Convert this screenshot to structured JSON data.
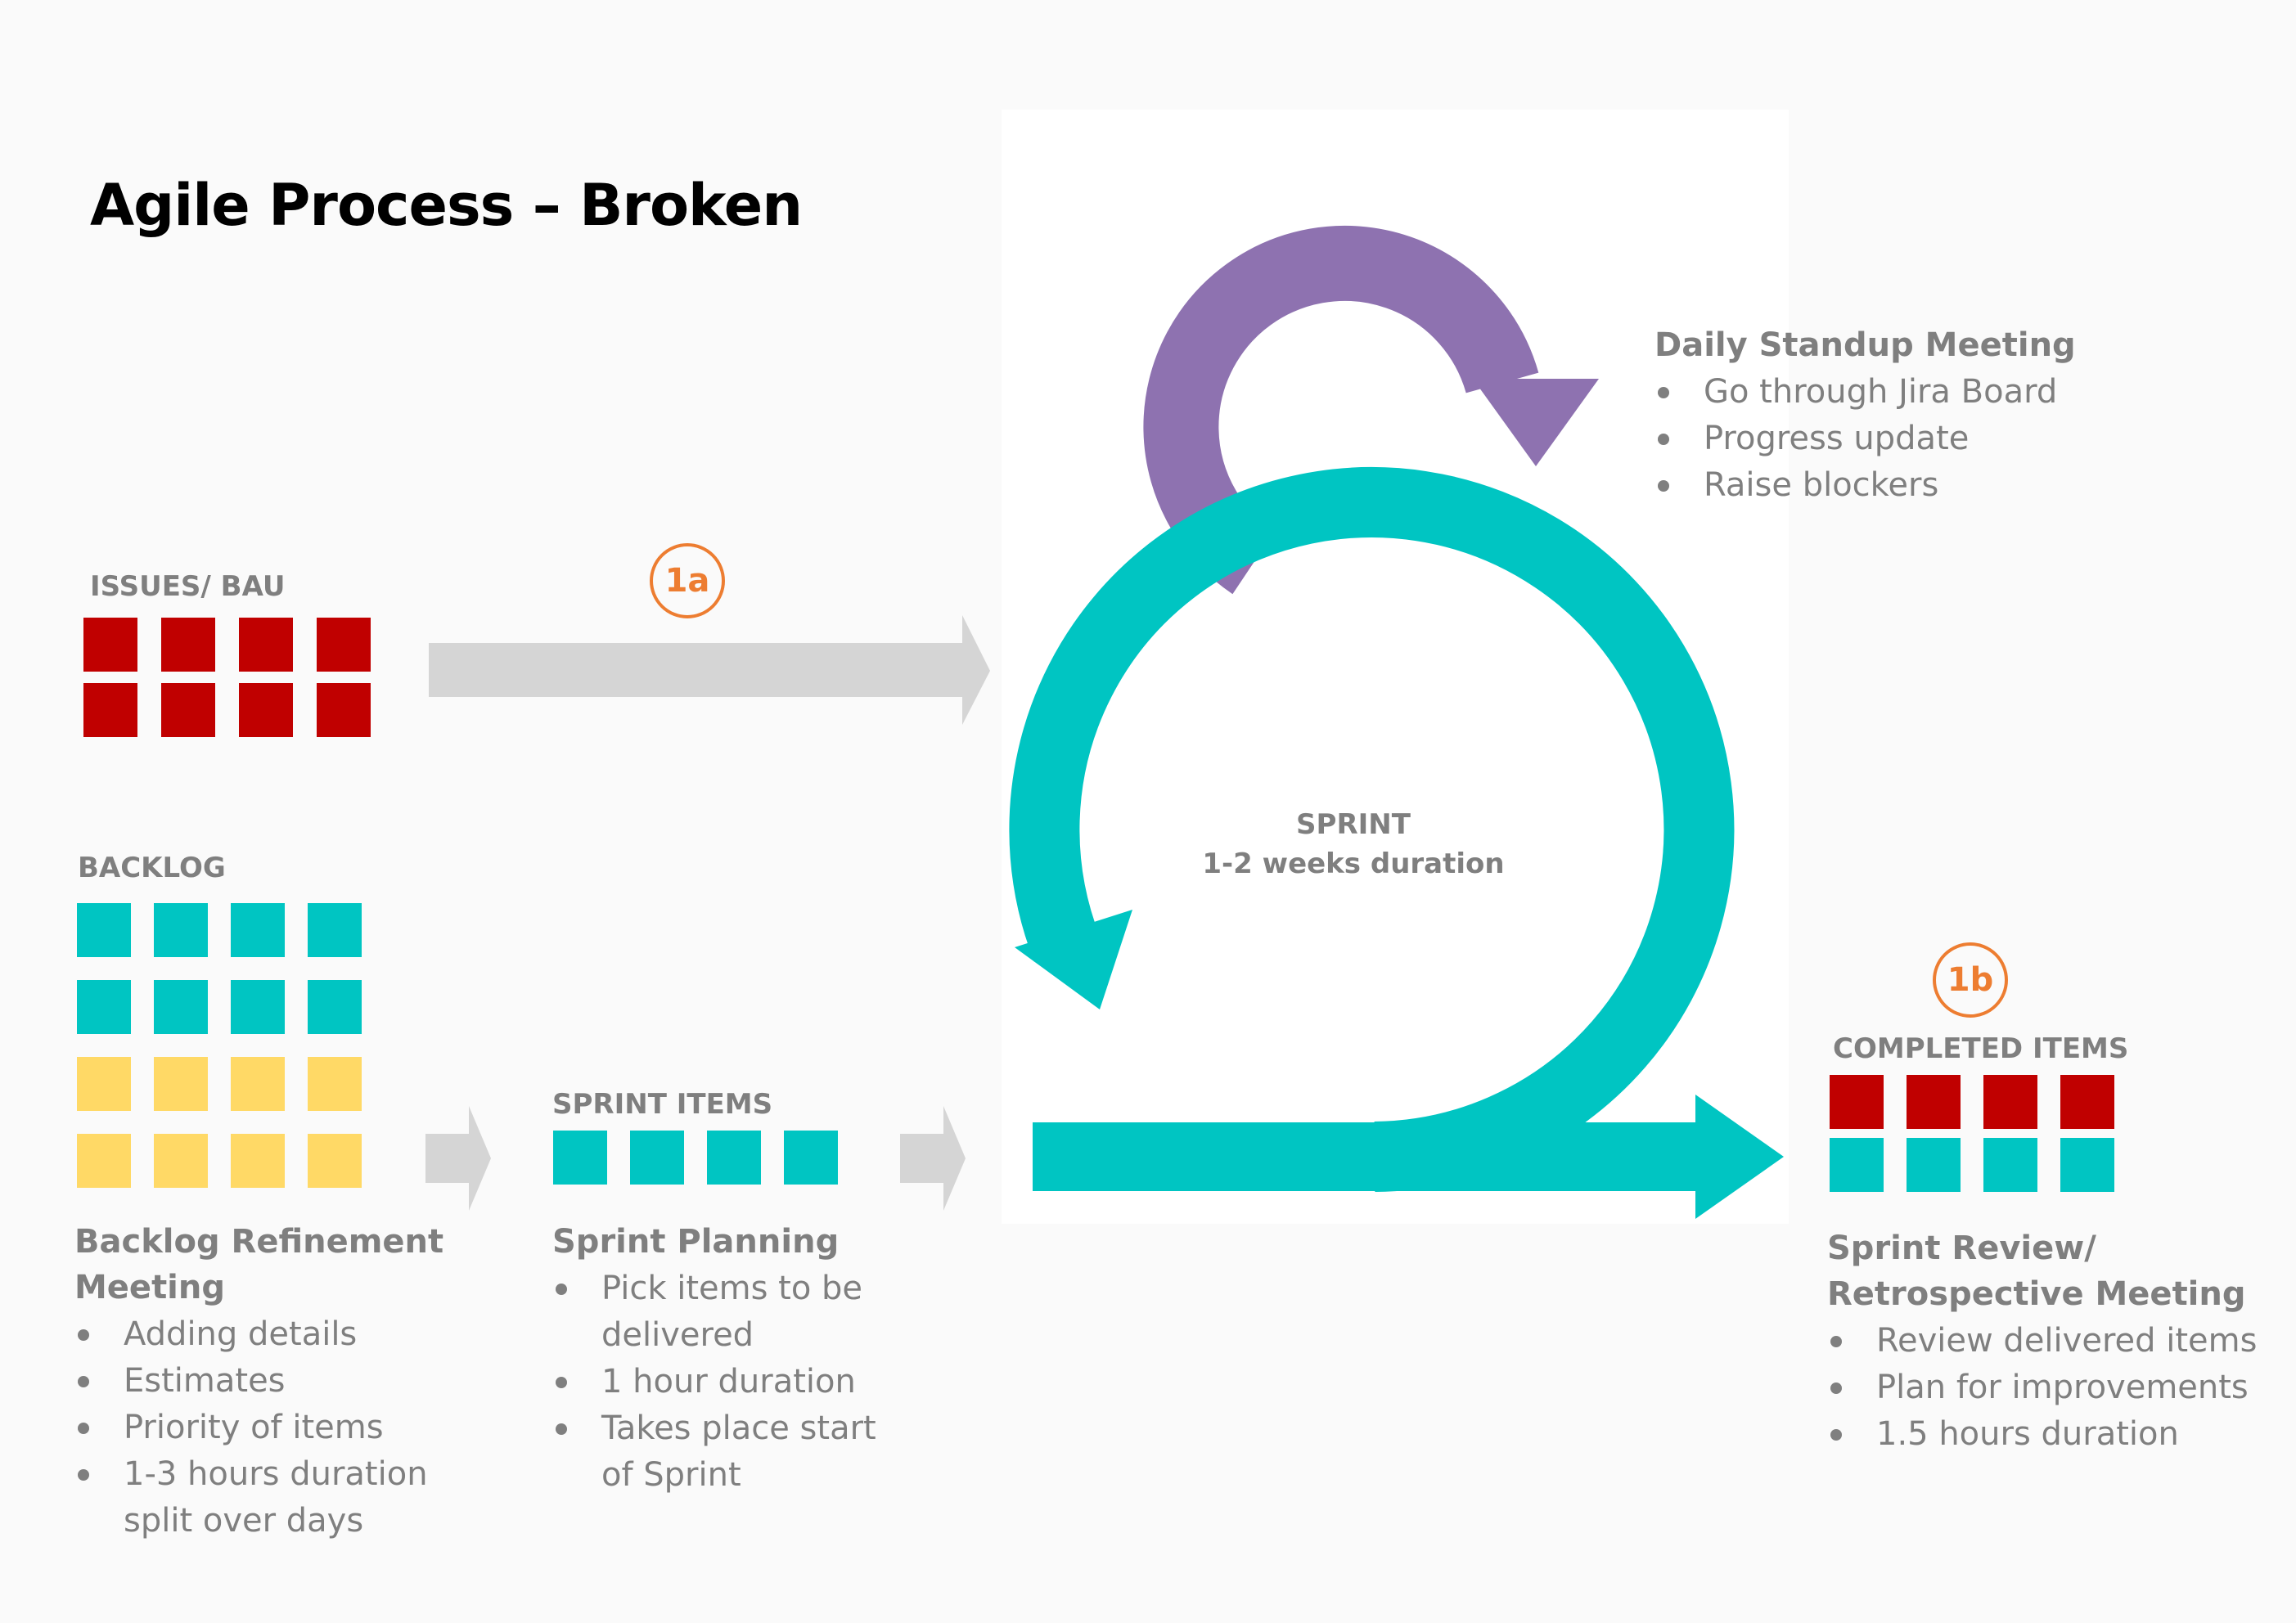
{
  "title": "Agile Process – Broken",
  "colors": {
    "issue_red": "#c00000",
    "teal": "#00c5c2",
    "yellow": "#ffd966",
    "purple": "#8e72b0",
    "grey_arrow": "#d5d5d5",
    "orange": "#ed7d31",
    "text_grey": "#7f7f7f"
  },
  "issues": {
    "label": "ISSUES/ BAU",
    "cells": [
      "red",
      "red",
      "red",
      "red",
      "red",
      "red",
      "red",
      "red"
    ]
  },
  "backlog": {
    "label": "BACKLOG",
    "cells": [
      "teal",
      "teal",
      "teal",
      "teal",
      "teal",
      "teal",
      "teal",
      "teal",
      "yellow",
      "yellow",
      "yellow",
      "yellow",
      "yellow",
      "yellow",
      "yellow",
      "yellow"
    ],
    "heading": [
      "Backlog Refinement",
      "Meeting"
    ],
    "bullets": [
      "Adding details",
      "Estimates",
      "Priority of items",
      "1-3 hours duration split over days"
    ]
  },
  "sprint_items": {
    "label": "SPRINT ITEMS",
    "cells": [
      "teal",
      "teal",
      "teal",
      "teal"
    ],
    "heading": "Sprint Planning",
    "bullets": [
      "Pick items to be delivered",
      "1 hour duration",
      "Takes place start of Sprint"
    ]
  },
  "daily": {
    "heading": "Daily Standup Meeting",
    "bullets": [
      "Go through Jira Board",
      "Progress update",
      "Raise blockers"
    ]
  },
  "sprint": {
    "line1": "SPRINT",
    "line2": "1-2 weeks duration"
  },
  "badges": {
    "a": "1a",
    "b": "1b"
  },
  "completed": {
    "label": "COMPLETED ITEMS",
    "cells": [
      "red",
      "red",
      "red",
      "red",
      "teal",
      "teal",
      "teal",
      "teal"
    ],
    "heading": [
      "Sprint Review/",
      "Retrospective Meeting"
    ],
    "bullets": [
      "Review delivered items",
      "Plan for improvements",
      "1.5 hours duration"
    ]
  }
}
